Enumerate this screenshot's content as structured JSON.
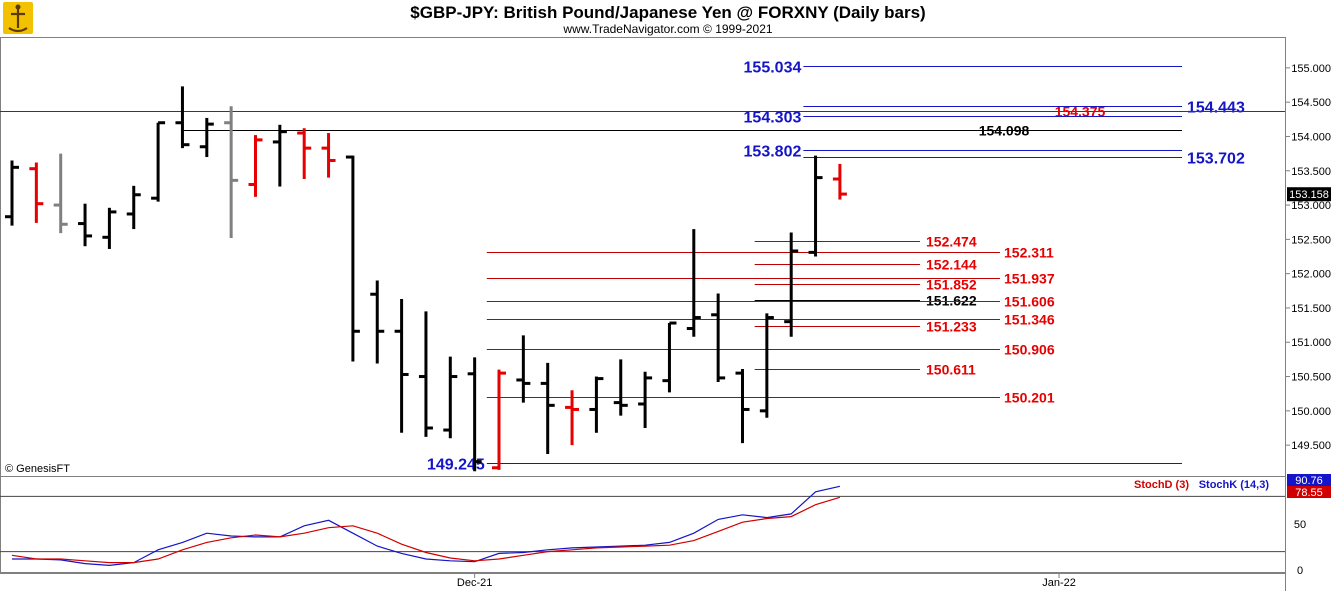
{
  "header": {
    "title": "$GBP-JPY:  British Pound/Japanese Yen @ FORXNY  (Daily bars)",
    "subtitle": "www.TradeNavigator.com © 1999-2021",
    "watermark": "© GenesisFT"
  },
  "colors": {
    "black": "#000000",
    "red": "#e60000",
    "gray": "#808080",
    "blue": "#0a1ad6",
    "levelRed": "#c00000",
    "levelBlue": "#1414c8",
    "stochK": "#1414c8",
    "stochD": "#d00000"
  },
  "chart_data": [
    {
      "type": "ohlc",
      "title": "$GBP-JPY:  British Pound/Japanese Yen @ FORXNY  (Daily bars)",
      "ylim": [
        149.05,
        155.45
      ],
      "yticks": [
        "155.000",
        "154.500",
        "154.000",
        "153.500",
        "153.000",
        "152.500",
        "152.000",
        "151.500",
        "151.000",
        "150.500",
        "150.000",
        "149.500"
      ],
      "ytick_values": [
        155.0,
        154.5,
        154.0,
        153.5,
        153.0,
        152.5,
        152.0,
        151.5,
        151.0,
        150.5,
        150.0,
        149.5
      ],
      "xticks": [
        "Dec-21",
        "Jan-22"
      ],
      "xtick_bar_index": [
        19,
        43
      ],
      "last_price": "153.158",
      "bars": [
        {
          "o": 152.83,
          "h": 153.65,
          "l": 152.7,
          "c": 153.55,
          "color": "black"
        },
        {
          "o": 153.53,
          "h": 153.62,
          "l": 152.74,
          "c": 153.02,
          "color": "red"
        },
        {
          "o": 153.0,
          "h": 153.75,
          "l": 152.59,
          "c": 152.72,
          "color": "gray"
        },
        {
          "o": 152.73,
          "h": 153.02,
          "l": 152.4,
          "c": 152.55,
          "color": "black"
        },
        {
          "o": 152.53,
          "h": 152.96,
          "l": 152.36,
          "c": 152.9,
          "color": "black"
        },
        {
          "o": 152.87,
          "h": 153.28,
          "l": 152.65,
          "c": 153.15,
          "color": "black"
        },
        {
          "o": 153.1,
          "h": 154.2,
          "l": 153.05,
          "c": 154.2,
          "color": "black"
        },
        {
          "o": 154.2,
          "h": 154.73,
          "l": 153.83,
          "c": 153.88,
          "color": "black"
        },
        {
          "o": 153.85,
          "h": 154.27,
          "l": 153.7,
          "c": 154.18,
          "color": "black"
        },
        {
          "o": 154.2,
          "h": 154.44,
          "l": 152.52,
          "c": 153.36,
          "color": "gray"
        },
        {
          "o": 153.3,
          "h": 154.02,
          "l": 153.12,
          "c": 153.95,
          "color": "red"
        },
        {
          "o": 153.92,
          "h": 154.17,
          "l": 153.27,
          "c": 154.07,
          "color": "black"
        },
        {
          "o": 154.05,
          "h": 154.12,
          "l": 153.38,
          "c": 153.83,
          "color": "red"
        },
        {
          "o": 153.83,
          "h": 154.05,
          "l": 153.4,
          "c": 153.65,
          "color": "red"
        },
        {
          "o": 153.7,
          "h": 153.72,
          "l": 150.72,
          "c": 151.16,
          "color": "black"
        },
        {
          "o": 151.7,
          "h": 151.9,
          "l": 150.69,
          "c": 151.16,
          "color": "black"
        },
        {
          "o": 151.16,
          "h": 151.63,
          "l": 149.68,
          "c": 150.53,
          "color": "black"
        },
        {
          "o": 150.5,
          "h": 151.45,
          "l": 149.62,
          "c": 149.75,
          "color": "black"
        },
        {
          "o": 149.72,
          "h": 150.79,
          "l": 149.6,
          "c": 150.5,
          "color": "black"
        },
        {
          "o": 150.54,
          "h": 150.78,
          "l": 149.12,
          "c": 149.26,
          "color": "black"
        },
        {
          "o": 149.17,
          "h": 150.6,
          "l": 149.14,
          "c": 150.55,
          "color": "red"
        },
        {
          "o": 150.45,
          "h": 151.1,
          "l": 150.12,
          "c": 150.4,
          "color": "black"
        },
        {
          "o": 150.4,
          "h": 150.7,
          "l": 149.37,
          "c": 150.08,
          "color": "black"
        },
        {
          "o": 150.05,
          "h": 150.3,
          "l": 149.5,
          "c": 150.02,
          "color": "red"
        },
        {
          "o": 150.02,
          "h": 150.5,
          "l": 149.68,
          "c": 150.47,
          "color": "black"
        },
        {
          "o": 150.12,
          "h": 150.75,
          "l": 149.93,
          "c": 150.08,
          "color": "black"
        },
        {
          "o": 150.1,
          "h": 150.57,
          "l": 149.75,
          "c": 150.48,
          "color": "black"
        },
        {
          "o": 150.44,
          "h": 151.28,
          "l": 150.27,
          "c": 151.28,
          "color": "black"
        },
        {
          "o": 151.2,
          "h": 152.65,
          "l": 151.08,
          "c": 151.36,
          "color": "black"
        },
        {
          "o": 151.4,
          "h": 151.71,
          "l": 150.42,
          "c": 150.48,
          "color": "black"
        },
        {
          "o": 150.55,
          "h": 150.61,
          "l": 149.53,
          "c": 150.02,
          "color": "black"
        },
        {
          "o": 150.0,
          "h": 151.42,
          "l": 149.9,
          "c": 151.36,
          "color": "black"
        },
        {
          "o": 151.3,
          "h": 152.6,
          "l": 151.08,
          "c": 152.33,
          "color": "black"
        },
        {
          "o": 152.31,
          "h": 153.72,
          "l": 152.25,
          "c": 153.4,
          "color": "black"
        },
        {
          "o": 153.38,
          "h": 153.6,
          "l": 153.08,
          "c": 153.16,
          "color": "red"
        }
      ],
      "levels": [
        {
          "value": 155.034,
          "label": "155.034",
          "color": "blue",
          "start_bar": 32.5,
          "end_x": 1182,
          "label_side": "left"
        },
        {
          "value": 154.443,
          "label": "154.443",
          "color": "blue",
          "start_bar": 32.5,
          "end_x": 1182,
          "label_side": "right"
        },
        {
          "value": 154.375,
          "label": "154.375",
          "color": "red",
          "start_bar": -1,
          "end_x": 1285,
          "label_side": "mid"
        },
        {
          "value": 154.303,
          "label": "154.303",
          "color": "blue",
          "start_bar": 32.5,
          "end_x": 1182,
          "label_side": "left"
        },
        {
          "value": 154.098,
          "label": "154.098",
          "color": "black",
          "start_bar": 7,
          "end_x": 1182,
          "label_side": "mid"
        },
        {
          "value": 153.802,
          "label": "153.802",
          "color": "blue",
          "start_bar": 32.5,
          "end_x": 1182,
          "label_side": "left"
        },
        {
          "value": 153.702,
          "label": "153.702",
          "color": "blue",
          "start_bar": 32.5,
          "end_x": 1182,
          "label_side": "right"
        },
        {
          "value": 152.474,
          "label": "152.474",
          "color": "red",
          "start_bar": 30.5,
          "end_x": 920,
          "label_side": "mid"
        },
        {
          "value": 152.311,
          "label": "152.311",
          "color": "red",
          "start_bar": 19.5,
          "end_x": 1000,
          "label_side": "right2"
        },
        {
          "value": 152.144,
          "label": "152.144",
          "color": "red",
          "start_bar": 30.5,
          "end_x": 920,
          "label_side": "mid"
        },
        {
          "value": 151.937,
          "label": "151.937",
          "color": "red",
          "start_bar": 19.5,
          "end_x": 1000,
          "label_side": "right2"
        },
        {
          "value": 151.852,
          "label": "151.852",
          "color": "red",
          "start_bar": 30.5,
          "end_x": 920,
          "label_side": "mid"
        },
        {
          "value": 151.622,
          "label": "151.622",
          "color": "black",
          "start_bar": 30.5,
          "end_x": 920,
          "label_side": "mid"
        },
        {
          "value": 151.606,
          "label": "151.606",
          "color": "red",
          "start_bar": 19.5,
          "end_x": 1000,
          "label_side": "right2"
        },
        {
          "value": 151.346,
          "label": "151.346",
          "color": "red",
          "start_bar": 19.5,
          "end_x": 1000,
          "label_side": "right2"
        },
        {
          "value": 151.233,
          "label": "151.233",
          "color": "red",
          "start_bar": 30.5,
          "end_x": 920,
          "label_side": "mid"
        },
        {
          "value": 150.906,
          "label": "150.906",
          "color": "red",
          "start_bar": 19.5,
          "end_x": 1000,
          "label_side": "right2"
        },
        {
          "value": 150.611,
          "label": "150.611",
          "color": "red",
          "start_bar": 30.5,
          "end_x": 920,
          "label_side": "mid"
        },
        {
          "value": 150.201,
          "label": "150.201",
          "color": "red",
          "start_bar": 19.5,
          "end_x": 1000,
          "label_side": "right2"
        },
        {
          "value": 149.245,
          "label": "149.245",
          "color": "blue",
          "start_bar": 19.5,
          "end_x": 1182,
          "label_side": "left"
        }
      ]
    },
    {
      "type": "line",
      "title": "",
      "legend": [
        "StochD (3)",
        "StochK (14,3)"
      ],
      "ylim": [
        0,
        100
      ],
      "yticks": [
        "50",
        "0"
      ],
      "ytick_values": [
        50,
        0
      ],
      "upper_band": 80,
      "lower_band": 20,
      "last_k": "90.76",
      "last_d": "78.55",
      "series": [
        {
          "name": "StochK (14,3)",
          "color": "stochK",
          "values": [
            12,
            12,
            11,
            7,
            5,
            8,
            22,
            30,
            40,
            37,
            36,
            36,
            48,
            54,
            40,
            26,
            18,
            12,
            10,
            9,
            18,
            19,
            22,
            24,
            25,
            26,
            27,
            30,
            40,
            55,
            60,
            57,
            61,
            85,
            91
          ]
        },
        {
          "name": "StochD (3)",
          "color": "stochD",
          "values": [
            16,
            12,
            12,
            10,
            8,
            8,
            12,
            22,
            30,
            35,
            38,
            36,
            40,
            46,
            48,
            40,
            28,
            19,
            13,
            10,
            12,
            16,
            20,
            22,
            24,
            25,
            26,
            27,
            32,
            42,
            52,
            56,
            58,
            71,
            79
          ]
        }
      ]
    }
  ]
}
